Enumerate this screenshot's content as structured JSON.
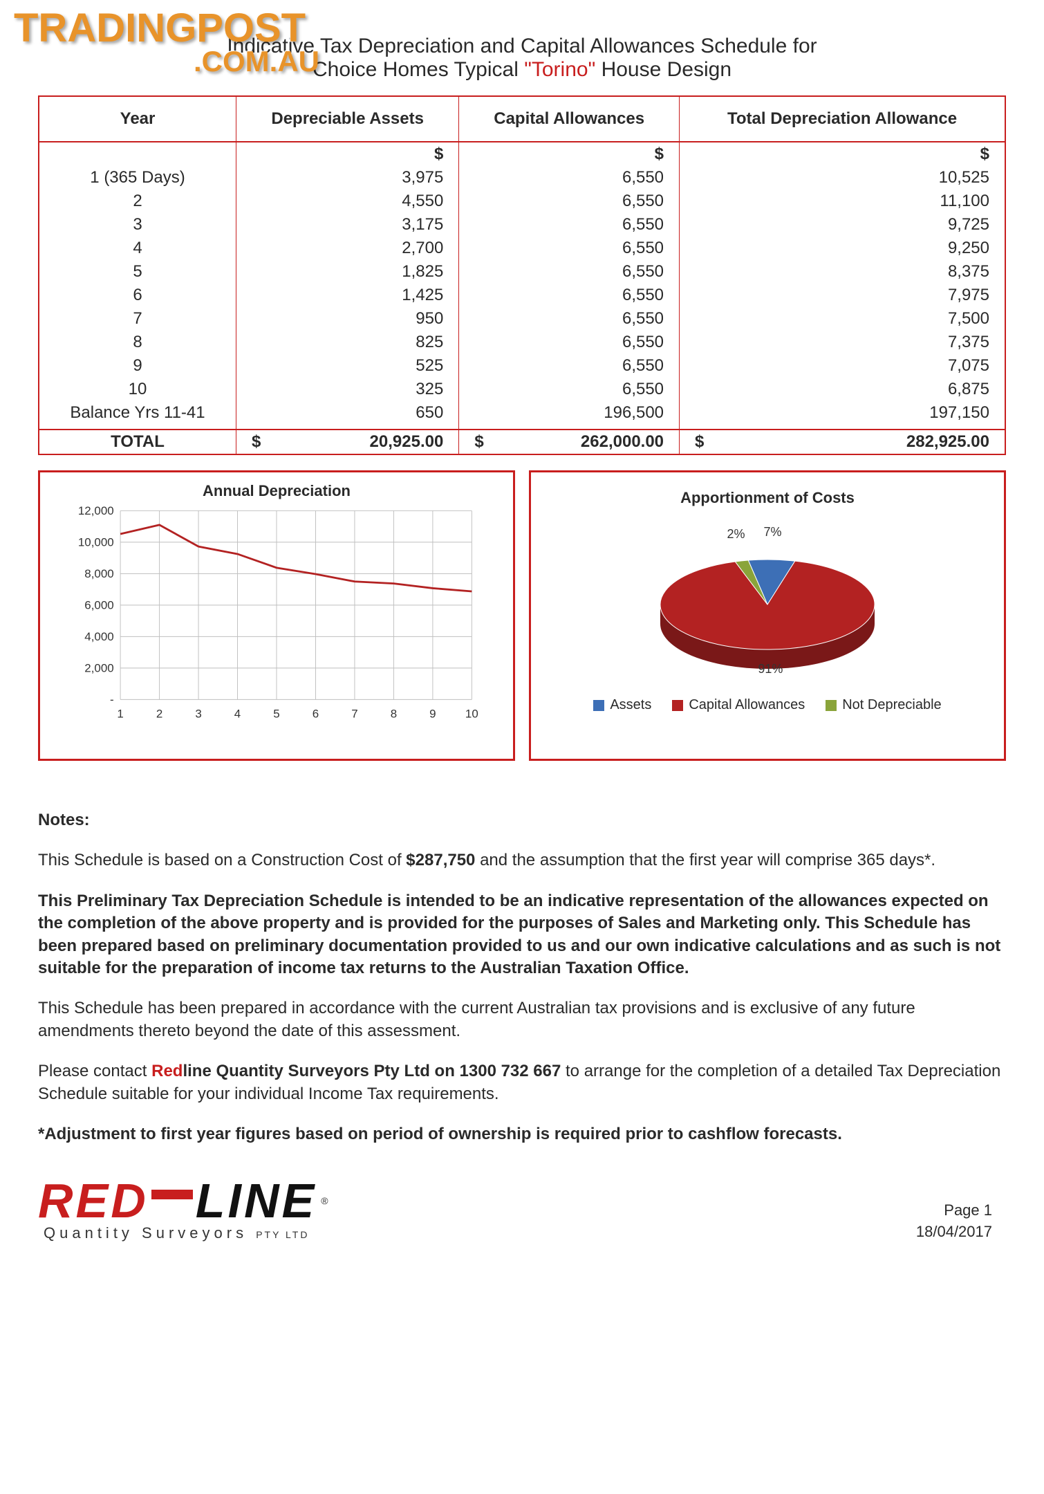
{
  "watermark": {
    "line1": "TRADINGPOST",
    "line2": ".COM.AU"
  },
  "title": {
    "prefix": "Indicative Tax Depreciation and Capital Allowances Schedule for",
    "line2_prefix": "Choice Homes Typical ",
    "highlight": "\"Torino\"",
    "line2_suffix": " House Design"
  },
  "table": {
    "headers": [
      "Year",
      "Depreciable Assets",
      "Capital Allowances",
      "Total Depreciation Allowance"
    ],
    "currency_symbol": "$",
    "rows": [
      {
        "year": "1 (365 Days)",
        "assets": "3,975",
        "capital": "6,550",
        "total": "10,525"
      },
      {
        "year": "2",
        "assets": "4,550",
        "capital": "6,550",
        "total": "11,100"
      },
      {
        "year": "3",
        "assets": "3,175",
        "capital": "6,550",
        "total": "9,725"
      },
      {
        "year": "4",
        "assets": "2,700",
        "capital": "6,550",
        "total": "9,250"
      },
      {
        "year": "5",
        "assets": "1,825",
        "capital": "6,550",
        "total": "8,375"
      },
      {
        "year": "6",
        "assets": "1,425",
        "capital": "6,550",
        "total": "7,975"
      },
      {
        "year": "7",
        "assets": "950",
        "capital": "6,550",
        "total": "7,500"
      },
      {
        "year": "8",
        "assets": "825",
        "capital": "6,550",
        "total": "7,375"
      },
      {
        "year": "9",
        "assets": "525",
        "capital": "6,550",
        "total": "7,075"
      },
      {
        "year": "10",
        "assets": "325",
        "capital": "6,550",
        "total": "6,875"
      },
      {
        "year": "Balance Yrs 11-41",
        "assets": "650",
        "capital": "196,500",
        "total": "197,150"
      }
    ],
    "total": {
      "label": "TOTAL",
      "assets": "20,925.00",
      "capital": "262,000.00",
      "total": "282,925.00"
    }
  },
  "line_chart": {
    "title": "Annual Depreciation",
    "type": "line",
    "x": [
      1,
      2,
      3,
      4,
      5,
      6,
      7,
      8,
      9,
      10
    ],
    "y": [
      10525,
      11100,
      9725,
      9250,
      8375,
      7975,
      7500,
      7375,
      7075,
      6875
    ],
    "ylim": [
      0,
      12000
    ],
    "ytick_step": 2000,
    "xlim": [
      1,
      10
    ],
    "line_color": "#b32222",
    "line_width": 3,
    "grid_color": "#bfbfbf",
    "background_color": "#ffffff",
    "font_size": 18,
    "text_color": "#333333"
  },
  "pie_chart": {
    "title": "Apportionment of Costs",
    "type": "pie",
    "slices": [
      {
        "label": "Assets",
        "pct": 7,
        "pct_label": "7%",
        "color": "#3d6fb6"
      },
      {
        "label": "Capital Allowances",
        "pct": 91,
        "pct_label": "91%",
        "color": "#b32222"
      },
      {
        "label": "Not Depreciable",
        "pct": 2,
        "pct_label": "2%",
        "color": "#8aa43a"
      }
    ],
    "legend": [
      "Assets",
      "Capital Allowances",
      "Not Depreciable"
    ],
    "font_size": 18,
    "text_color": "#333333"
  },
  "notes": {
    "heading": "Notes:",
    "p1a": "This Schedule is based on a Construction Cost of ",
    "p1b": "$287,750",
    "p1c": " and the assumption that the first year will comprise 365 days*.",
    "p2": "This Preliminary Tax Depreciation Schedule is intended to be an indicative representation of the allowances expected on the completion of the above property and is provided for the purposes of Sales and Marketing only.  This Schedule has been prepared based on preliminary documentation provided to us and our own indicative calculations and as such is not suitable for the preparation of income tax returns to the Australian Taxation Office.",
    "p3": "This Schedule has been prepared in accordance with the current Australian tax provisions and is exclusive of any future amendments thereto beyond the date of this assessment.",
    "p4a": "Please contact ",
    "p4_red": "Red",
    "p4_bold": "line Quantity Surveyors Pty Ltd on 1300 732 667",
    "p4b": " to arrange for the completion of a detailed Tax Depreciation Schedule suitable for your individual Income Tax requirements.",
    "p5": "*Adjustment to first year figures based on period of ownership is required prior to cashflow forecasts."
  },
  "footer": {
    "logo_red": "RED",
    "logo_line": "LINE",
    "logo_sub": "Quantity Surveyors ",
    "logo_pty": "PTY LTD",
    "reg": "®",
    "page": "Page 1",
    "date": "18/04/2017"
  }
}
